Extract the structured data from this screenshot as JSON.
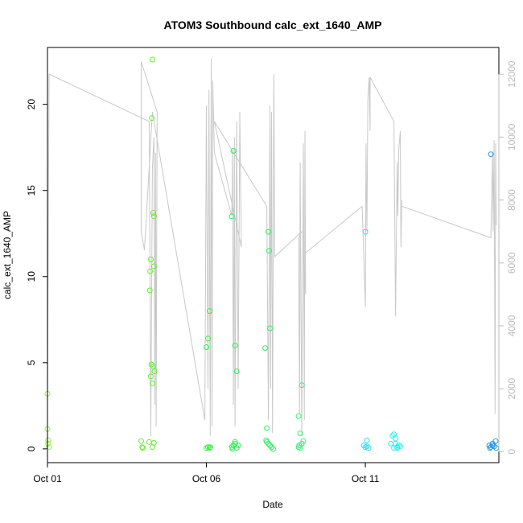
{
  "chart_data": {
    "type": "scatter",
    "title": "ATOM3 Southbound calc_ext_1640_AMP",
    "xlabel": "Date",
    "ylabel": "calc_ext_1640_AMP",
    "x_ticks": [
      {
        "label": "Oct 01",
        "day": 1
      },
      {
        "label": "Oct 06",
        "day": 6
      },
      {
        "label": "Oct 11",
        "day": 11
      }
    ],
    "y_ticks": [
      0,
      5,
      10,
      15,
      20
    ],
    "y2_ticks": [
      0,
      2000,
      4000,
      6000,
      8000,
      10000,
      12000
    ],
    "xlim": [
      1,
      15.2
    ],
    "ylim": [
      -0.8,
      23.3
    ],
    "y2lim": [
      -350,
      12850
    ],
    "grid": false,
    "colors": {
      "axis": "#000000",
      "secondary_axis": "#bbbbbb",
      "line": "#c8c8c8"
    },
    "secondary_series": {
      "name": "",
      "axis": "right",
      "color": "#c8c8c8",
      "points": [
        [
          1.0,
          1200
        ],
        [
          1.05,
          12000
        ],
        [
          4.2,
          10500
        ],
        [
          4.22,
          6800
        ],
        [
          4.25,
          500
        ],
        [
          4.3,
          9000
        ],
        [
          4.35,
          10000
        ],
        [
          4.38,
          1500
        ],
        [
          4.4,
          9500
        ],
        [
          4.42,
          800
        ],
        [
          4.45,
          10800
        ],
        [
          3.95,
          12400
        ],
        [
          3.95,
          7000
        ],
        [
          4.05,
          6400
        ],
        [
          4.3,
          10800
        ],
        [
          5.95,
          1000
        ],
        [
          6.0,
          11000
        ],
        [
          6.05,
          2000
        ],
        [
          6.08,
          11500
        ],
        [
          6.12,
          500
        ],
        [
          6.15,
          12500
        ],
        [
          6.18,
          800
        ],
        [
          6.2,
          11800
        ],
        [
          6.25,
          9500
        ],
        [
          6.25,
          9500
        ],
        [
          6.8,
          7500
        ],
        [
          6.82,
          9600
        ],
        [
          6.85,
          1500
        ],
        [
          6.88,
          10000
        ],
        [
          6.9,
          800
        ],
        [
          6.95,
          10500
        ],
        [
          7.0,
          2000
        ],
        [
          7.05,
          10800
        ],
        [
          7.1,
          6500
        ],
        [
          6.25,
          10500
        ],
        [
          7.9,
          7800
        ],
        [
          7.95,
          1000
        ],
        [
          8.0,
          11000
        ],
        [
          8.02,
          2000
        ],
        [
          8.05,
          10800
        ],
        [
          8.08,
          600
        ],
        [
          8.12,
          12000
        ],
        [
          8.15,
          6200
        ],
        [
          9.0,
          7000
        ],
        [
          8.9,
          6800
        ],
        [
          8.93,
          1200
        ],
        [
          8.95,
          9200
        ],
        [
          9.0,
          500
        ],
        [
          9.05,
          9800
        ],
        [
          9.08,
          1000
        ],
        [
          9.1,
          10200
        ],
        [
          9.12,
          5000
        ],
        [
          9.1,
          6300
        ],
        [
          10.9,
          7800
        ],
        [
          11.0,
          4600
        ],
        [
          11.02,
          9800
        ],
        [
          11.05,
          7000
        ],
        [
          11.08,
          11200
        ],
        [
          11.12,
          11900
        ],
        [
          11.15,
          10200
        ],
        [
          11.15,
          11900
        ],
        [
          11.9,
          10500
        ],
        [
          11.95,
          4300
        ],
        [
          12.0,
          9200
        ],
        [
          12.02,
          7500
        ],
        [
          12.05,
          9600
        ],
        [
          12.1,
          10200
        ],
        [
          12.12,
          6500
        ],
        [
          12.15,
          8000
        ],
        [
          12.15,
          7800
        ],
        [
          14.95,
          6800
        ],
        [
          15.0,
          9500
        ],
        [
          15.02,
          7000
        ],
        [
          15.05,
          9900
        ],
        [
          15.08,
          1200
        ],
        [
          15.1,
          9800
        ],
        [
          15.12,
          7200
        ]
      ]
    },
    "series": [
      {
        "color": "#99ee44",
        "points": [
          [
            1.0,
            3.2
          ],
          [
            1.0,
            1.15
          ],
          [
            1.02,
            0.5
          ],
          [
            1.02,
            0.3
          ],
          [
            1.05,
            0.1
          ]
        ]
      },
      {
        "color": "#66ee33",
        "points": [
          [
            3.95,
            0.45
          ],
          [
            3.98,
            0.1
          ],
          [
            4.0,
            0.05
          ],
          [
            4.2,
            0.4
          ],
          [
            4.22,
            9.2
          ],
          [
            4.23,
            10.3
          ],
          [
            4.25,
            11.0
          ],
          [
            4.25,
            4.2
          ],
          [
            4.27,
            4.9
          ],
          [
            4.28,
            19.2
          ],
          [
            4.3,
            22.6
          ],
          [
            4.3,
            3.8
          ],
          [
            4.32,
            4.8
          ],
          [
            4.33,
            13.7
          ],
          [
            4.35,
            13.5
          ],
          [
            4.35,
            10.6
          ],
          [
            4.37,
            4.5
          ],
          [
            4.3,
            0.1
          ],
          [
            4.35,
            0.35
          ]
        ]
      },
      {
        "color": "#33ee44",
        "points": [
          [
            6.0,
            5.9
          ],
          [
            6.05,
            6.4
          ],
          [
            6.1,
            8.0
          ],
          [
            6.0,
            0.05
          ],
          [
            6.05,
            0.1
          ],
          [
            6.1,
            0.05
          ],
          [
            6.12,
            0.1
          ]
        ]
      },
      {
        "color": "#33ee55",
        "points": [
          [
            6.8,
            13.5
          ],
          [
            6.85,
            17.3
          ],
          [
            6.9,
            6.0
          ],
          [
            6.95,
            4.5
          ],
          [
            6.8,
            0.1
          ],
          [
            6.85,
            0.2
          ],
          [
            6.9,
            0.3
          ],
          [
            6.95,
            0.05
          ],
          [
            7.0,
            0.2
          ],
          [
            6.82,
            0.0
          ],
          [
            6.9,
            0.4
          ]
        ]
      },
      {
        "color": "#33ee66",
        "points": [
          [
            7.85,
            5.85
          ],
          [
            7.9,
            1.2
          ],
          [
            7.95,
            12.6
          ],
          [
            7.97,
            11.5
          ],
          [
            8.0,
            7.0
          ],
          [
            7.9,
            0.4
          ],
          [
            7.95,
            0.3
          ],
          [
            8.0,
            0.2
          ],
          [
            8.05,
            0.1
          ],
          [
            8.1,
            0.0
          ],
          [
            7.88,
            0.5
          ]
        ]
      },
      {
        "color": "#33ee77",
        "points": [
          [
            8.9,
            1.9
          ],
          [
            8.95,
            0.9
          ],
          [
            9.0,
            3.7
          ],
          [
            8.9,
            0.1
          ],
          [
            8.95,
            0.05
          ],
          [
            9.0,
            0.3
          ],
          [
            9.05,
            0.45
          ],
          [
            8.92,
            0.2
          ]
        ]
      },
      {
        "color": "#33ddee",
        "points": [
          [
            11.0,
            12.6
          ],
          [
            11.05,
            0.5
          ],
          [
            11.0,
            0.1
          ],
          [
            11.05,
            0.15
          ],
          [
            11.1,
            0.05
          ],
          [
            10.95,
            0.2
          ]
        ]
      },
      {
        "color": "#33eeee",
        "points": [
          [
            11.8,
            0.3
          ],
          [
            11.85,
            0.75
          ],
          [
            11.9,
            0.85
          ],
          [
            11.95,
            0.6
          ],
          [
            12.0,
            0.1
          ],
          [
            12.05,
            0.2
          ],
          [
            12.1,
            0.15
          ],
          [
            11.9,
            0.05
          ],
          [
            11.95,
            0.3
          ],
          [
            12.0,
            0.05
          ]
        ]
      },
      {
        "color": "#2299ee",
        "points": [
          [
            14.95,
            17.1
          ],
          [
            14.9,
            0.2
          ],
          [
            14.95,
            0.1
          ],
          [
            15.0,
            0.3
          ],
          [
            15.05,
            0.15
          ],
          [
            15.1,
            0.45
          ],
          [
            15.12,
            0.05
          ],
          [
            15.0,
            0.2
          ],
          [
            14.92,
            0.05
          ]
        ]
      }
    ]
  }
}
